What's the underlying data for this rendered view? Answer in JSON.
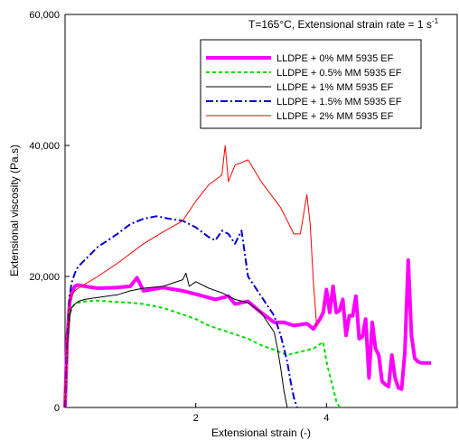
{
  "chart_data": {
    "type": "line",
    "title": "",
    "annotation": {
      "prefix": "T=165°C, Extensional strain rate = 1 s",
      "superscript": "-1"
    },
    "xlabel": "Extensional strain (-)",
    "ylabel": "Extensional viscosity (Pa.s)",
    "xlim": [
      0,
      6
    ],
    "ylim": [
      0,
      60000
    ],
    "x_ticks": [
      2,
      4
    ],
    "x_tick_labels": [
      "2",
      "4"
    ],
    "y_ticks": [
      0,
      20000,
      40000,
      60000
    ],
    "y_tick_labels": [
      "0",
      "20,000",
      "40,000",
      "60,000"
    ],
    "grid": false,
    "legend_position": "top-right",
    "series": [
      {
        "name": "LLDPE + 0% MM 5935 EF",
        "color": "#ff00ff",
        "width": 4,
        "dash": "",
        "x": [
          0.0,
          0.03,
          0.07,
          0.1,
          0.15,
          0.2,
          0.3,
          0.5,
          0.8,
          1.0,
          1.1,
          1.2,
          1.5,
          1.8,
          2.0,
          2.3,
          2.5,
          2.6,
          2.8,
          3.0,
          3.2,
          3.35,
          3.5,
          3.7,
          3.8,
          3.9,
          3.95,
          4.0,
          4.05,
          4.1,
          4.15,
          4.2,
          4.25,
          4.3,
          4.35,
          4.4,
          4.45,
          4.5,
          4.55,
          4.6,
          4.65,
          4.7,
          4.75,
          4.8,
          4.85,
          4.9,
          4.95,
          5.0,
          5.05,
          5.1,
          5.15,
          5.2,
          5.25,
          5.3,
          5.35,
          5.4,
          5.45,
          5.5,
          5.6
        ],
        "y": [
          0,
          10000,
          16000,
          17500,
          18500,
          18700,
          18500,
          18200,
          18300,
          18500,
          19800,
          17800,
          18300,
          17800,
          17300,
          16500,
          17000,
          15800,
          16200,
          14500,
          13000,
          13000,
          12500,
          12800,
          12000,
          13500,
          14500,
          18000,
          14500,
          18500,
          14500,
          14800,
          16500,
          11000,
          14000,
          14000,
          17000,
          10500,
          10800,
          13500,
          4500,
          13000,
          9000,
          8000,
          4000,
          3500,
          3200,
          8000,
          4500,
          3000,
          2800,
          8500,
          22500,
          11000,
          7500,
          7000,
          6800,
          6800,
          6800
        ]
      },
      {
        "name": "LLDPE + 0.5% MM 5935 EF",
        "color": "#00dd00",
        "width": 2,
        "dash": "4,3",
        "x": [
          0.0,
          0.03,
          0.07,
          0.1,
          0.15,
          0.2,
          0.3,
          0.5,
          0.8,
          1.0,
          1.2,
          1.5,
          1.8,
          2.0,
          2.2,
          2.5,
          2.8,
          3.0,
          3.2,
          3.4,
          3.6,
          3.8,
          3.95,
          4.0,
          4.05,
          4.1,
          4.15,
          4.2
        ],
        "y": [
          0,
          9000,
          14000,
          15200,
          15800,
          16000,
          16200,
          16300,
          16100,
          16000,
          15800,
          15200,
          14200,
          13500,
          12500,
          11500,
          10500,
          9500,
          8800,
          8000,
          8500,
          9000,
          10000,
          7000,
          5000,
          3000,
          1000,
          0
        ]
      },
      {
        "name": "LLDPE + 1% MM 5935 EF",
        "color": "#000000",
        "width": 1,
        "dash": "",
        "x": [
          0.0,
          0.03,
          0.07,
          0.1,
          0.15,
          0.2,
          0.3,
          0.5,
          0.8,
          1.0,
          1.2,
          1.5,
          1.8,
          1.85,
          1.9,
          2.0,
          2.2,
          2.4,
          2.6,
          2.8,
          3.0,
          3.1,
          3.2,
          3.25,
          3.3,
          3.35,
          3.4
        ],
        "y": [
          0,
          9000,
          14000,
          15200,
          15800,
          16200,
          16500,
          16800,
          17200,
          17800,
          18200,
          18500,
          19500,
          20500,
          18500,
          19200,
          18200,
          17500,
          16500,
          16000,
          14500,
          13000,
          11500,
          9000,
          6000,
          2500,
          0
        ]
      },
      {
        "name": "LLDPE + 1.5% MM 5935 EF",
        "color": "#0000cc",
        "width": 2,
        "dash": "8,3,2,3",
        "x": [
          0.0,
          0.03,
          0.07,
          0.1,
          0.15,
          0.2,
          0.3,
          0.5,
          0.8,
          1.0,
          1.2,
          1.4,
          1.6,
          1.8,
          2.0,
          2.2,
          2.3,
          2.4,
          2.5,
          2.6,
          2.7,
          2.8,
          3.0,
          3.2,
          3.3,
          3.4,
          3.45,
          3.5,
          3.55
        ],
        "y": [
          0,
          10000,
          17000,
          19000,
          20500,
          21500,
          22500,
          24500,
          26500,
          28000,
          28800,
          29200,
          28800,
          28500,
          27500,
          26000,
          25500,
          27000,
          26500,
          25000,
          27000,
          20000,
          17000,
          14000,
          11000,
          7000,
          4000,
          1500,
          0
        ]
      },
      {
        "name": "LLDPE + 2% MM 5935 EF",
        "color": "#ff0000",
        "width": 1,
        "dash": "",
        "x": [
          0.0,
          0.03,
          0.07,
          0.1,
          0.15,
          0.2,
          0.3,
          0.5,
          0.8,
          1.0,
          1.2,
          1.5,
          1.8,
          2.0,
          2.2,
          2.4,
          2.45,
          2.5,
          2.6,
          2.8,
          3.0,
          3.3,
          3.5,
          3.6,
          3.7,
          3.75,
          3.8,
          3.85
        ],
        "y": [
          0,
          10000,
          16000,
          17000,
          17800,
          18200,
          18800,
          20000,
          22000,
          23500,
          25000,
          26800,
          28500,
          31500,
          34000,
          35500,
          40000,
          34500,
          37000,
          37800,
          34500,
          30500,
          26500,
          26500,
          32500,
          28000,
          19000,
          12500
        ]
      }
    ]
  }
}
